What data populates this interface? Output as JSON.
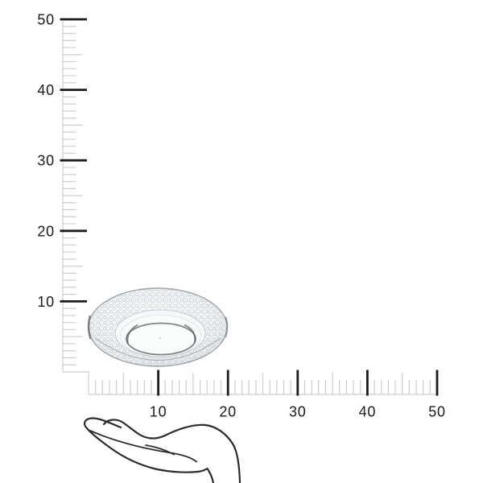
{
  "scene": {
    "description": "Product size guide: transparent glass plate shown against vertical and horizontal rulers with an open hand illustration for scale",
    "background": "#ffffff"
  },
  "vertical_ruler": {
    "range_min": 0,
    "range_max": 50,
    "minor_tick_interval": 1,
    "medium_tick_interval": 5,
    "major_tick_interval": 10,
    "tick_labels": [
      "10",
      "20",
      "30",
      "40",
      "50"
    ],
    "tick_label_values": [
      10,
      20,
      30,
      40,
      50
    ]
  },
  "horizontal_ruler": {
    "range_min": 0,
    "range_max": 50,
    "minor_tick_interval": 1,
    "medium_tick_interval": 5,
    "major_tick_interval": 10,
    "tick_labels": [
      "10",
      "20",
      "30",
      "40",
      "50"
    ],
    "tick_label_values": [
      10,
      20,
      30,
      40,
      50
    ]
  },
  "product": {
    "kind": "glass-plate"
  },
  "scale_reference": {
    "kind": "open-hand-side-view"
  },
  "colors": {
    "background": "#ffffff",
    "minor_tick": "#cbced0",
    "major_tick": "#1b1b1b",
    "label_text": "#1b1b1b",
    "plate_outline": "#9aa1a5",
    "plate_edge_dark": "#6d7478",
    "plate_inner_ring": "#70777b",
    "hand_line": "#2c2c2c"
  }
}
